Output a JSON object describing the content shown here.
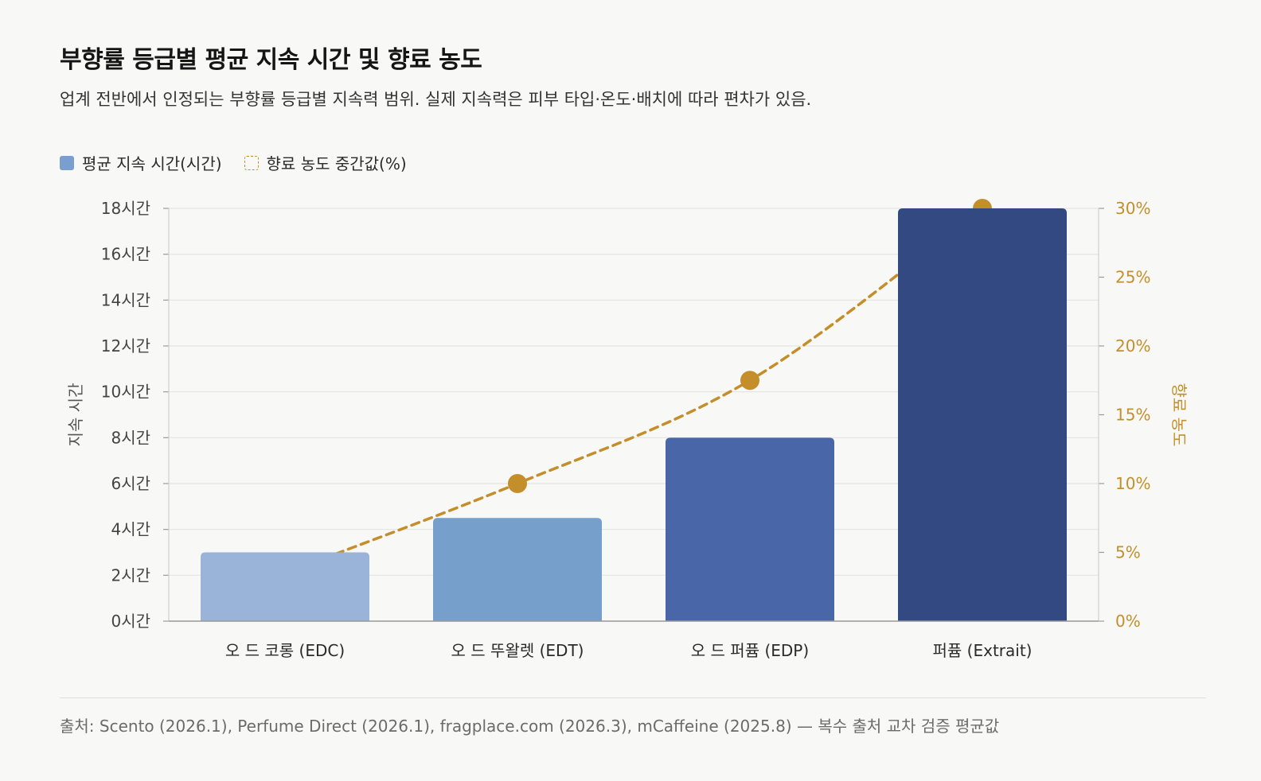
{
  "header": {
    "title": "부향률 등급별 평균 지속 시간 및 향료 농도",
    "subtitle": "업계 전반에서 인정되는 부향률 등급별 지속력 범위. 실제 지속력은 피부 타입·온도·배치에 따라 편차가 있음."
  },
  "colors": {
    "grid": "#e3e3e3",
    "axis_text": "#444444",
    "concentration": "#c48f2a",
    "bar_legend": "#7a9fcf"
  },
  "chart_data": {
    "type": "bar",
    "categories": [
      "오 드 코롱 (EDC)",
      "오 드 뚜왈렛 (EDT)",
      "오 드 퍼퓸 (EDP)",
      "퍼퓸 (Extrait)"
    ],
    "series": [
      {
        "name": "평균 지속 시간(시간)",
        "type": "bar",
        "axis": "left",
        "values": [
          3,
          4.5,
          8,
          18
        ],
        "colors": [
          "#9ab3d8",
          "#769fcc",
          "#4966a8",
          "#334981"
        ]
      },
      {
        "name": "향료 농도 중간값(%)",
        "type": "line",
        "axis": "right",
        "style": "dashed",
        "values": [
          3.5,
          10,
          17.5,
          30
        ],
        "color": "#c48f2a"
      }
    ],
    "ylabel": "지속 시간",
    "y2label": "향료 농도",
    "ylim": [
      0,
      18
    ],
    "y2lim": [
      0,
      30
    ],
    "yticks": [
      "0시간",
      "2시간",
      "4시간",
      "6시간",
      "8시간",
      "10시간",
      "12시간",
      "14시간",
      "16시간",
      "18시간"
    ],
    "y2ticks": [
      "0%",
      "5%",
      "10%",
      "15%",
      "20%",
      "25%",
      "30%"
    ],
    "grid": true,
    "legend_position": "top-left"
  },
  "footer": {
    "source": "출처: Scento (2026.1), Perfume Direct (2026.1), fragplace.com (2026.3), mCaffeine (2025.8) — 복수 출처 교차 검증 평균값"
  }
}
